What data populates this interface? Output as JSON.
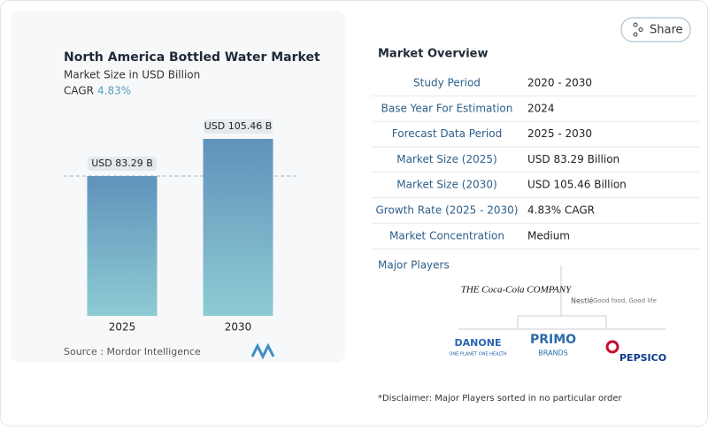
{
  "chart_data": {
    "type": "bar",
    "title": "North America Bottled Water Market",
    "subtitle": "Market Size in USD Billion",
    "cagr_label": "CAGR",
    "cagr_value": "4.83%",
    "categories": [
      "2025",
      "2030"
    ],
    "values": [
      83.29,
      105.46
    ],
    "value_labels": [
      "USD 83.29 B",
      "USD 105.46 B"
    ],
    "colors": [
      "#5f93bb",
      "#8ecbd3"
    ],
    "source": "Source : Mordor Intelligence"
  },
  "share": "Share",
  "overview": {
    "title": "Market Overview",
    "rows": [
      [
        "Study Period",
        "2020 - 2030"
      ],
      [
        "Base Year For Estimation",
        "2024"
      ],
      [
        "Forecast Data Period",
        "2025 - 2030"
      ],
      [
        "Market Size (2025)",
        "USD 83.29 Billion"
      ],
      [
        "Market Size (2030)",
        "USD 105.46 Billion"
      ],
      [
        "Growth Rate (2025 - 2030)",
        "4.83% CAGR"
      ],
      [
        "Market Concentration",
        "Medium"
      ]
    ]
  },
  "players": {
    "title": "Major Players",
    "names": [
      "THE Coca-Cola COMPANY",
      "Nestlé",
      "Good food, Good life",
      "DANONE",
      "ONE PLANET ONE HEALTH",
      "PRIMO",
      "BRANDS",
      "PEPSICO"
    ]
  },
  "disclaimer": "*Disclaimer: Major Players sorted in no particular order"
}
